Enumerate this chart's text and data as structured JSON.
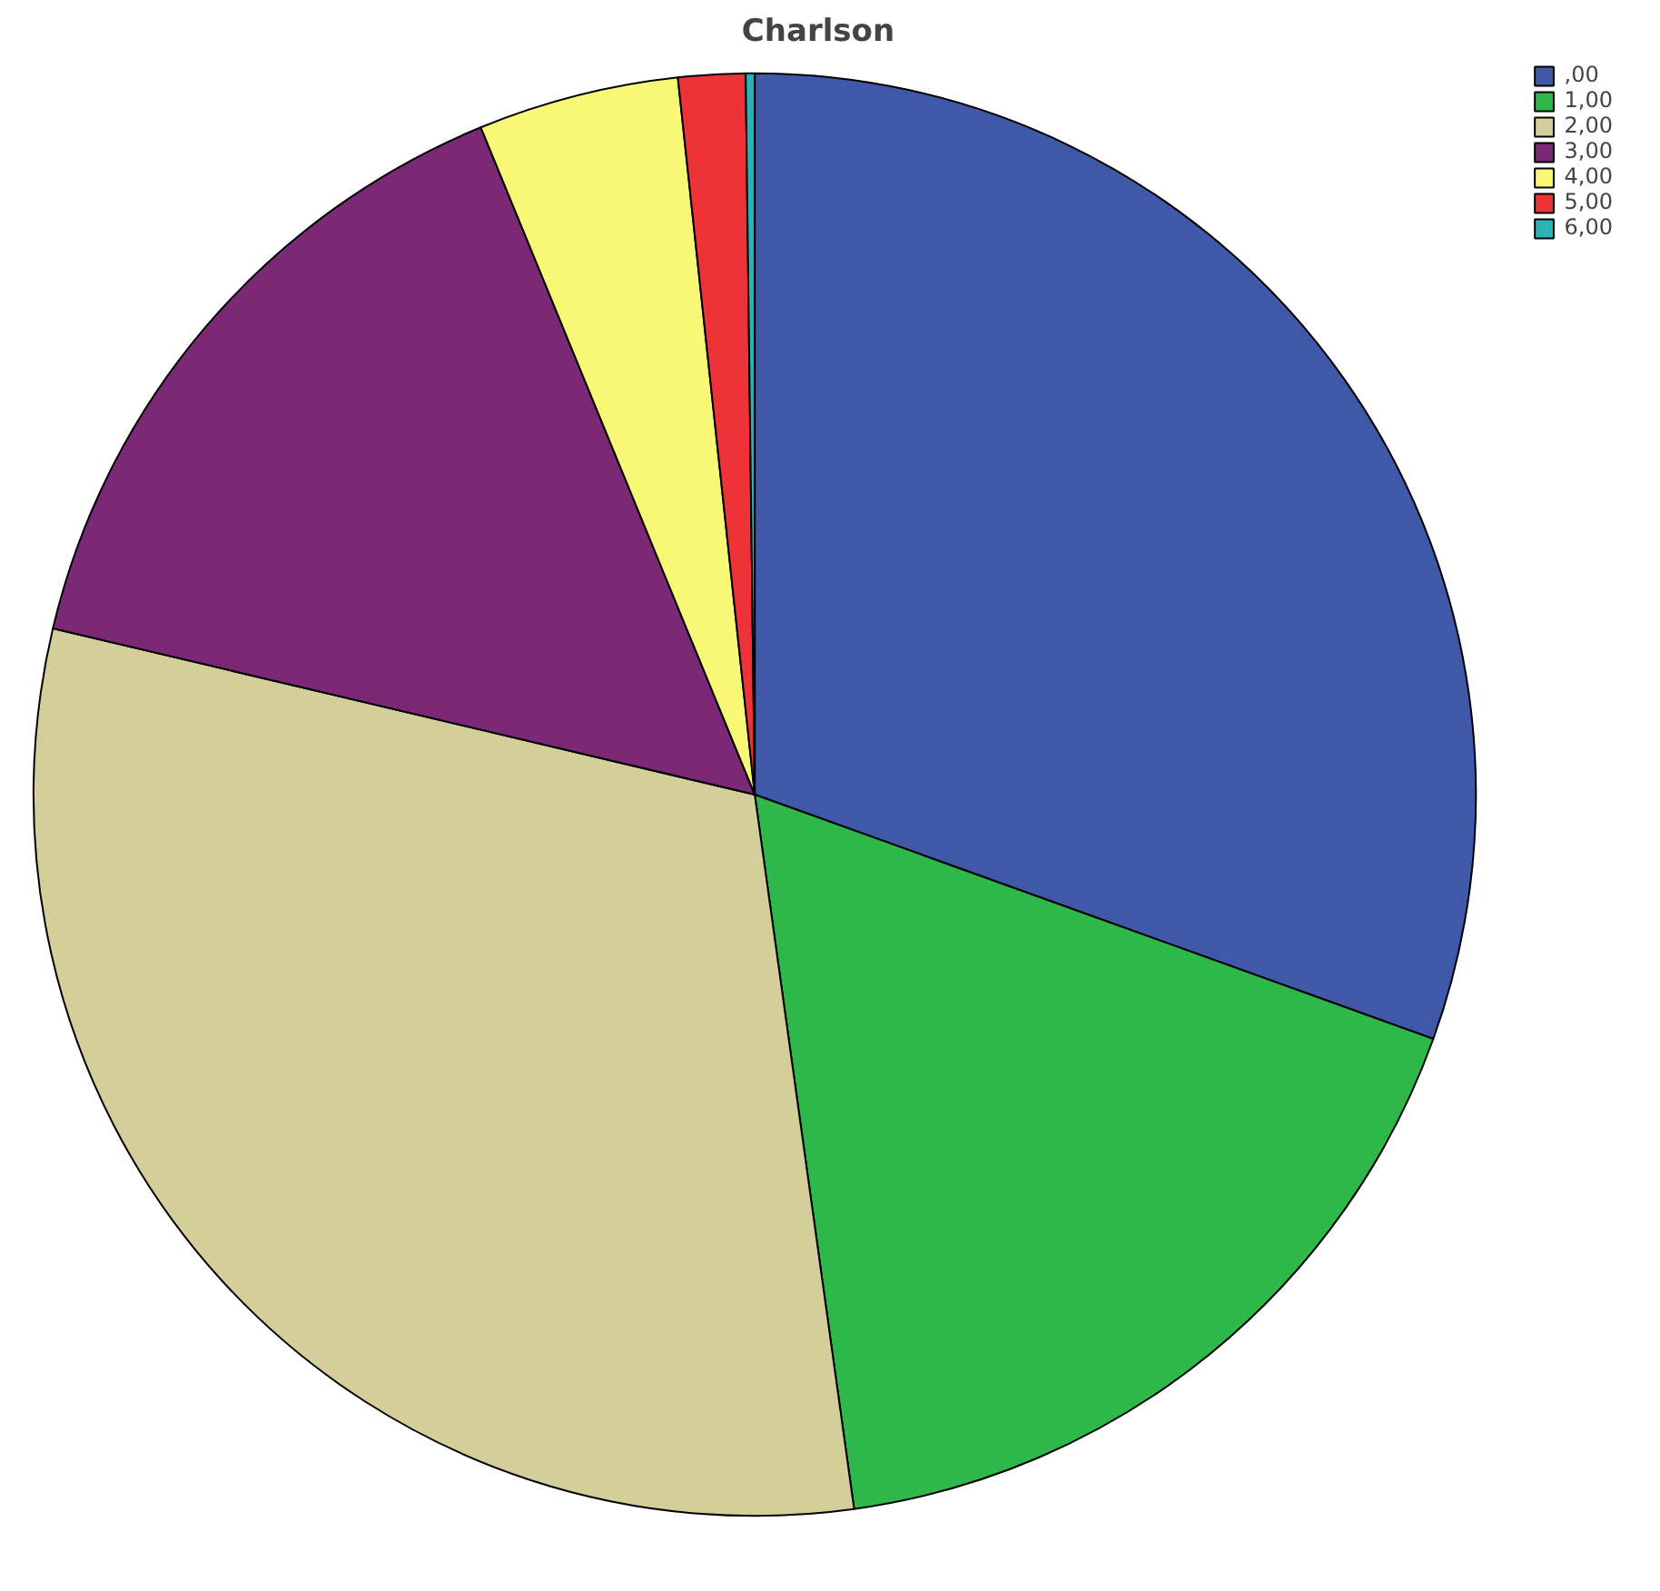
{
  "chart_data": {
    "type": "pie",
    "title": "Charlson",
    "categories": [
      ",00",
      "1,00",
      "2,00",
      "3,00",
      "4,00",
      "5,00",
      "6,00"
    ],
    "values": [
      30.5,
      17.3,
      30.9,
      15.1,
      4.5,
      1.5,
      0.2
    ],
    "colors": [
      "#3f58a8",
      "#2fb84a",
      "#d4cf9a",
      "#7b2877",
      "#f9f776",
      "#ee3338",
      "#2ab3b5"
    ],
    "legend": "top right"
  }
}
